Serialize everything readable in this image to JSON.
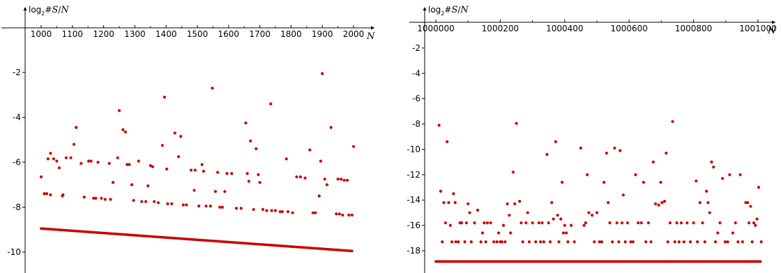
{
  "colors": {
    "points": "#cc0000",
    "axes": "#000000",
    "background": "#ffffff"
  },
  "chart_data": [
    {
      "type": "scatter",
      "ylabel": {
        "prefix": "log",
        "sub": "2",
        "rest": "#",
        "var1": "S",
        "slash": "/",
        "var2": "N"
      },
      "xlabel": "N",
      "xlim": [
        965,
        2025
      ],
      "ylim": [
        -10.6,
        0.1
      ],
      "xticks": [
        1000,
        1100,
        1200,
        1300,
        1400,
        1500,
        1600,
        1700,
        1800,
        1900,
        2000
      ],
      "minor_xticks": [
        1050,
        1150,
        1250,
        1350,
        1450,
        1550,
        1650,
        1750,
        1850,
        1950
      ],
      "xtick_labels": [
        "1000",
        "1100",
        "1200",
        "1300",
        "1400",
        "1500",
        "1600",
        "1700",
        "1800",
        "1900",
        "2000"
      ],
      "yticks": [
        -2,
        -4,
        -6,
        -8,
        -10
      ],
      "ytick_labels": [
        "-2",
        "-4",
        "-6",
        "-8",
        "-10"
      ],
      "grid": false,
      "baseline_band": {
        "x_start": 1000,
        "x_end": 1995,
        "y_start": -8.95,
        "y_end": -9.95,
        "step": 5
      },
      "points": [
        [
          1000,
          -6.65
        ],
        [
          1010,
          -7.4
        ],
        [
          1018,
          -7.4
        ],
        [
          1030,
          -7.45
        ],
        [
          1022,
          -5.85
        ],
        [
          1030,
          -5.6
        ],
        [
          1040,
          -5.85
        ],
        [
          1050,
          -5.95
        ],
        [
          1058,
          -6.25
        ],
        [
          1068,
          -7.5
        ],
        [
          1070,
          -7.45
        ],
        [
          1080,
          -5.8
        ],
        [
          1095,
          -5.8
        ],
        [
          1105,
          -5.2
        ],
        [
          1112,
          -4.45
        ],
        [
          1128,
          -6.05
        ],
        [
          1138,
          -7.55
        ],
        [
          1152,
          -5.95
        ],
        [
          1160,
          -5.95
        ],
        [
          1168,
          -7.6
        ],
        [
          1175,
          -7.6
        ],
        [
          1182,
          -6.0
        ],
        [
          1193,
          -7.6
        ],
        [
          1205,
          -7.65
        ],
        [
          1218,
          -6.05
        ],
        [
          1222,
          -7.65
        ],
        [
          1230,
          -6.9
        ],
        [
          1245,
          -5.8
        ],
        [
          1250,
          -3.7
        ],
        [
          1262,
          -4.55
        ],
        [
          1270,
          -4.65
        ],
        [
          1275,
          -6.1
        ],
        [
          1282,
          -6.1
        ],
        [
          1290,
          -7.0
        ],
        [
          1296,
          -7.7
        ],
        [
          1312,
          -5.95
        ],
        [
          1322,
          -7.75
        ],
        [
          1335,
          -7.75
        ],
        [
          1342,
          -7.05
        ],
        [
          1350,
          -6.15
        ],
        [
          1357,
          -6.2
        ],
        [
          1362,
          -7.75
        ],
        [
          1375,
          -7.8
        ],
        [
          1388,
          -5.25
        ],
        [
          1395,
          -3.1
        ],
        [
          1402,
          -6.3
        ],
        [
          1405,
          -7.85
        ],
        [
          1418,
          -7.85
        ],
        [
          1428,
          -4.7
        ],
        [
          1440,
          -5.75
        ],
        [
          1447,
          -4.85
        ],
        [
          1455,
          -7.9
        ],
        [
          1465,
          -7.9
        ],
        [
          1480,
          -6.35
        ],
        [
          1490,
          -7.25
        ],
        [
          1493,
          -6.35
        ],
        [
          1505,
          -7.95
        ],
        [
          1515,
          -6.1
        ],
        [
          1520,
          -6.4
        ],
        [
          1528,
          -7.95
        ],
        [
          1542,
          -7.95
        ],
        [
          1548,
          -2.7
        ],
        [
          1558,
          -7.3
        ],
        [
          1565,
          -6.45
        ],
        [
          1572,
          -8.0
        ],
        [
          1580,
          -8.0
        ],
        [
          1588,
          -7.3
        ],
        [
          1595,
          -6.5
        ],
        [
          1610,
          -6.5
        ],
        [
          1625,
          -8.05
        ],
        [
          1640,
          -8.05
        ],
        [
          1655,
          -4.25
        ],
        [
          1660,
          -6.5
        ],
        [
          1665,
          -6.85
        ],
        [
          1670,
          -5.05
        ],
        [
          1680,
          -8.1
        ],
        [
          1688,
          -5.4
        ],
        [
          1695,
          -6.55
        ],
        [
          1700,
          -6.9
        ],
        [
          1710,
          -8.1
        ],
        [
          1722,
          -8.15
        ],
        [
          1735,
          -3.4
        ],
        [
          1738,
          -8.15
        ],
        [
          1750,
          -8.15
        ],
        [
          1765,
          -8.2
        ],
        [
          1772,
          -8.2
        ],
        [
          1785,
          -5.85
        ],
        [
          1790,
          -8.2
        ],
        [
          1805,
          -8.25
        ],
        [
          1818,
          -6.65
        ],
        [
          1830,
          -6.65
        ],
        [
          1845,
          -6.7
        ],
        [
          1860,
          -5.45
        ],
        [
          1870,
          -8.25
        ],
        [
          1878,
          -8.25
        ],
        [
          1890,
          -7.5
        ],
        [
          1895,
          -5.95
        ],
        [
          1900,
          -2.05
        ],
        [
          1908,
          -6.75
        ],
        [
          1915,
          -7.0
        ],
        [
          1928,
          -4.45
        ],
        [
          1945,
          -8.3
        ],
        [
          1950,
          -6.75
        ],
        [
          1955,
          -8.3
        ],
        [
          1960,
          -6.75
        ],
        [
          1965,
          -8.35
        ],
        [
          1970,
          -6.8
        ],
        [
          1980,
          -6.8
        ],
        [
          1985,
          -8.35
        ],
        [
          1995,
          -8.35
        ],
        [
          2000,
          -5.3
        ]
      ]
    },
    {
      "type": "scatter",
      "ylabel": {
        "prefix": "log",
        "sub": "2",
        "rest": "#",
        "var1": "S",
        "slash": "/",
        "var2": "N"
      },
      "xlabel": "N",
      "xlim": [
        999977,
        1001023
      ],
      "ylim": [
        -19.4,
        0.1
      ],
      "xticks": [
        1000000,
        1000200,
        1000400,
        1000600,
        1000800,
        1001000
      ],
      "minor_xticks": [
        1000100,
        1000300,
        1000500,
        1000700,
        1000900
      ],
      "xtick_labels": [
        "1000000",
        "1000200",
        "1000400",
        "1000600",
        "1000800",
        "1001000"
      ],
      "yticks": [
        -2,
        -4,
        -6,
        -8,
        -10,
        -12,
        -14,
        -16,
        -18
      ],
      "ytick_labels": [
        "-2",
        "-4",
        "-6",
        "-8",
        "-10",
        "-12",
        "-14",
        "-16",
        "-18"
      ],
      "grid": false,
      "baseline_band": {
        "x_start": 1000000,
        "x_end": 1001010,
        "y_start": -18.85,
        "y_end": -18.85,
        "step": 3
      },
      "points": [
        [
          1000010,
          -8.1
        ],
        [
          1000015,
          -13.3
        ],
        [
          1000020,
          -17.3
        ],
        [
          1000025,
          -14.2
        ],
        [
          1000030,
          -15.8
        ],
        [
          1000035,
          -9.4
        ],
        [
          1000040,
          -14.2
        ],
        [
          1000045,
          -16.0
        ],
        [
          1000050,
          -17.3
        ],
        [
          1000055,
          -13.5
        ],
        [
          1000060,
          -14.2
        ],
        [
          1000062,
          -17.3
        ],
        [
          1000070,
          -17.3
        ],
        [
          1000075,
          -15.8
        ],
        [
          1000080,
          -15.8
        ],
        [
          1000090,
          -17.3
        ],
        [
          1000095,
          -15.8
        ],
        [
          1000100,
          -14.3
        ],
        [
          1000105,
          -15.0
        ],
        [
          1000110,
          -17.3
        ],
        [
          1000120,
          -15.8
        ],
        [
          1000130,
          -14.8
        ],
        [
          1000140,
          -17.3
        ],
        [
          1000145,
          -16.6
        ],
        [
          1000150,
          -15.8
        ],
        [
          1000155,
          -17.3
        ],
        [
          1000160,
          -15.8
        ],
        [
          1000170,
          -15.8
        ],
        [
          1000180,
          -17.3
        ],
        [
          1000190,
          -17.3
        ],
        [
          1000195,
          -16.6
        ],
        [
          1000200,
          -17.3
        ],
        [
          1000205,
          -17.3
        ],
        [
          1000210,
          -16.0
        ],
        [
          1000215,
          -17.3
        ],
        [
          1000222,
          -14.3
        ],
        [
          1000228,
          -15.2
        ],
        [
          1000232,
          -16.6
        ],
        [
          1000240,
          -11.8
        ],
        [
          1000245,
          -14.3
        ],
        [
          1000250,
          -7.95
        ],
        [
          1000260,
          -14.1
        ],
        [
          1000265,
          -15.8
        ],
        [
          1000270,
          -17.3
        ],
        [
          1000280,
          -15.8
        ],
        [
          1000285,
          -15.0
        ],
        [
          1000290,
          -17.3
        ],
        [
          1000300,
          -15.8
        ],
        [
          1000310,
          -17.3
        ],
        [
          1000320,
          -15.8
        ],
        [
          1000325,
          -17.3
        ],
        [
          1000330,
          -15.8
        ],
        [
          1000335,
          -17.3
        ],
        [
          1000345,
          -10.4
        ],
        [
          1000350,
          -15.8
        ],
        [
          1000355,
          -17.3
        ],
        [
          1000360,
          -14.2
        ],
        [
          1000365,
          -15.5
        ],
        [
          1000372,
          -9.4
        ],
        [
          1000378,
          -15.2
        ],
        [
          1000382,
          -17.3
        ],
        [
          1000388,
          -15.5
        ],
        [
          1000392,
          -12.6
        ],
        [
          1000396,
          -16.6
        ],
        [
          1000400,
          -16.0
        ],
        [
          1000405,
          -16.6
        ],
        [
          1000410,
          -17.3
        ],
        [
          1000420,
          -16.0
        ],
        [
          1000430,
          -17.3
        ],
        [
          1000450,
          -9.9
        ],
        [
          1000460,
          -16.0
        ],
        [
          1000465,
          -15.8
        ],
        [
          1000470,
          -12.0
        ],
        [
          1000475,
          -15.0
        ],
        [
          1000485,
          -15.2
        ],
        [
          1000492,
          -17.3
        ],
        [
          1000500,
          -15.0
        ],
        [
          1000508,
          -17.3
        ],
        [
          1000515,
          -17.3
        ],
        [
          1000522,
          -12.6
        ],
        [
          1000530,
          -10.3
        ],
        [
          1000535,
          -14.2
        ],
        [
          1000540,
          -15.8
        ],
        [
          1000548,
          -17.3
        ],
        [
          1000555,
          -9.9
        ],
        [
          1000562,
          -15.8
        ],
        [
          1000568,
          -17.3
        ],
        [
          1000572,
          -10.1
        ],
        [
          1000578,
          -15.8
        ],
        [
          1000582,
          -13.6
        ],
        [
          1000588,
          -17.3
        ],
        [
          1000595,
          -15.8
        ],
        [
          1000605,
          -17.3
        ],
        [
          1000612,
          -17.3
        ],
        [
          1000620,
          -12.0
        ],
        [
          1000628,
          -15.8
        ],
        [
          1000638,
          -15.8
        ],
        [
          1000645,
          -12.6
        ],
        [
          1000652,
          -17.3
        ],
        [
          1000660,
          -15.8
        ],
        [
          1000668,
          -17.3
        ],
        [
          1000675,
          -11.0
        ],
        [
          1000682,
          -14.3
        ],
        [
          1000692,
          -14.4
        ],
        [
          1000698,
          -12.6
        ],
        [
          1000702,
          -14.2
        ],
        [
          1000710,
          -14.1
        ],
        [
          1000715,
          -10.3
        ],
        [
          1000720,
          -17.3
        ],
        [
          1000727,
          -15.8
        ],
        [
          1000735,
          -7.8
        ],
        [
          1000742,
          -17.3
        ],
        [
          1000748,
          -15.8
        ],
        [
          1000755,
          -17.3
        ],
        [
          1000762,
          -15.8
        ],
        [
          1000770,
          -17.3
        ],
        [
          1000780,
          -15.8
        ],
        [
          1000790,
          -17.3
        ],
        [
          1000800,
          -15.8
        ],
        [
          1000808,
          -12.5
        ],
        [
          1000812,
          -17.3
        ],
        [
          1000820,
          -14.2
        ],
        [
          1000828,
          -15.8
        ],
        [
          1000835,
          -17.3
        ],
        [
          1000840,
          -13.3
        ],
        [
          1000845,
          -14.2
        ],
        [
          1000850,
          -15.0
        ],
        [
          1000856,
          -11.0
        ],
        [
          1000862,
          -11.4
        ],
        [
          1000868,
          -17.3
        ],
        [
          1000875,
          -16.6
        ],
        [
          1000882,
          -15.8
        ],
        [
          1000890,
          -12.3
        ],
        [
          1000898,
          -17.3
        ],
        [
          1000906,
          -17.3
        ],
        [
          1000912,
          -12.0
        ],
        [
          1000922,
          -16.6
        ],
        [
          1000930,
          -15.8
        ],
        [
          1000938,
          -17.3
        ],
        [
          1000945,
          -12.0
        ],
        [
          1000952,
          -17.3
        ],
        [
          1000962,
          -14.2
        ],
        [
          1000968,
          -14.2
        ],
        [
          1000972,
          -15.8
        ],
        [
          1000977,
          -14.5
        ],
        [
          1000982,
          -17.3
        ],
        [
          1000987,
          -15.8
        ],
        [
          1000992,
          -16.0
        ],
        [
          1000997,
          -15.5
        ],
        [
          1001002,
          -13.0
        ],
        [
          1001010,
          -17.3
        ]
      ]
    }
  ]
}
